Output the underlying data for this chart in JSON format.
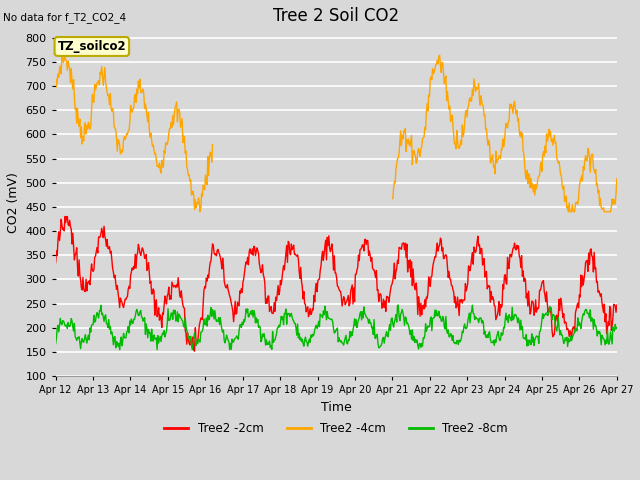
{
  "title": "Tree 2 Soil CO2",
  "top_left_text": "No data for f_T2_CO2_4",
  "ylabel": "CO2 (mV)",
  "xlabel": "Time",
  "box_label": "TZ_soilco2",
  "x_tick_labels": [
    "Apr 12",
    "Apr 13",
    "Apr 14",
    "Apr 15",
    "Apr 16",
    "Apr 17",
    "Apr 18",
    "Apr 19",
    "Apr 20",
    "Apr 21",
    "Apr 22",
    "Apr 23",
    "Apr 24",
    "Apr 25",
    "Apr 26",
    "Apr 27"
  ],
  "ylim": [
    100,
    820
  ],
  "yticks": [
    100,
    150,
    200,
    250,
    300,
    350,
    400,
    450,
    500,
    550,
    600,
    650,
    700,
    750,
    800
  ],
  "legend_labels": [
    "Tree2 -2cm",
    "Tree2 -4cm",
    "Tree2 -8cm"
  ],
  "legend_colors": [
    "#ff0000",
    "#ffa500",
    "#00bb00"
  ],
  "line_colors": {
    "red": "#ff0000",
    "orange": "#ffa500",
    "green": "#00bb00"
  },
  "background_color": "#d8d8d8",
  "plot_bg_color": "#d8d8d8",
  "grid_color": "#ffffff",
  "title_fontsize": 12,
  "axis_fontsize": 9,
  "tick_fontsize": 8
}
